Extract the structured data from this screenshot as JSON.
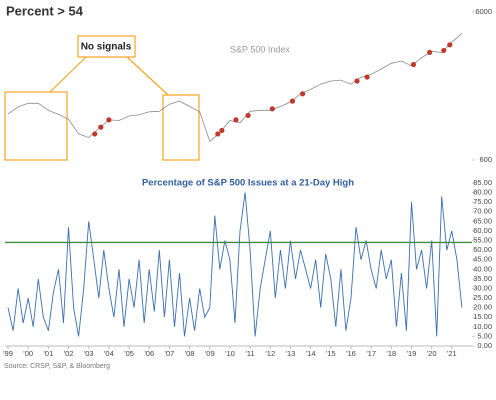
{
  "chart_data": [
    {
      "type": "line",
      "title": "Percent > 54",
      "series_label": "S&P 500 Index",
      "annotation": "No signals",
      "log_scale": true,
      "color": "#8c8c8c",
      "signal_color": "#c0392b",
      "xlim": [
        1998.85,
        2022
      ],
      "ylim": [
        600,
        6000
      ],
      "yticks": [
        600,
        6000
      ],
      "x": [
        1999,
        1999.5,
        2000,
        2000.5,
        2001,
        2001.5,
        2002,
        2002.5,
        2003,
        2003.5,
        2004,
        2004.5,
        2005,
        2005.5,
        2006,
        2006.5,
        2007,
        2007.5,
        2008,
        2008.5,
        2009,
        2009.5,
        2010,
        2010.5,
        2011,
        2011.5,
        2012,
        2012.5,
        2013,
        2013.5,
        2014,
        2014.5,
        2015,
        2015.5,
        2016,
        2016.5,
        2017,
        2017.5,
        2018,
        2018.5,
        2019,
        2019.5,
        2020,
        2020.5,
        2021,
        2021.5
      ],
      "values": [
        1230,
        1370,
        1450,
        1450,
        1300,
        1220,
        1130,
        900,
        850,
        980,
        1120,
        1110,
        1190,
        1210,
        1270,
        1280,
        1430,
        1500,
        1380,
        1270,
        800,
        920,
        1110,
        1070,
        1280,
        1300,
        1300,
        1380,
        1480,
        1680,
        1800,
        1950,
        2050,
        2080,
        1950,
        2170,
        2280,
        2470,
        2700,
        2800,
        2600,
        2950,
        3250,
        3200,
        3750,
        4300
      ],
      "signal_x": [
        2003.3,
        2003.6,
        2004,
        2009.4,
        2009.6,
        2010.3,
        2010.9,
        2012.1,
        2013.1,
        2013.6,
        2016.3,
        2016.8,
        2019.1,
        2019.9,
        2020.6,
        2020.9
      ],
      "signal_values": [
        900,
        1000,
        1120,
        900,
        950,
        1120,
        1200,
        1330,
        1500,
        1680,
        2050,
        2180,
        2650,
        3200,
        3300,
        3600
      ]
    },
    {
      "type": "line",
      "title": "Percentage of S&P 500 Issues at a 21-Day High",
      "source": "Source: CRSP, S&P, & Bloomberg",
      "color": "#3a6fb0",
      "threshold": 54,
      "threshold_color": "#3c8c3c",
      "xlim": [
        1998.85,
        2022
      ],
      "ylim": [
        0,
        85
      ],
      "yticks": [
        {
          "value": 0,
          "label": "0.00"
        },
        {
          "value": 5,
          "label": "5.00"
        },
        {
          "value": 10,
          "label": "10.00"
        },
        {
          "value": 15,
          "label": "15.00"
        },
        {
          "value": 20,
          "label": "20.00"
        },
        {
          "value": 25,
          "label": "25.00"
        },
        {
          "value": 30,
          "label": "30.00"
        },
        {
          "value": 35,
          "label": "35.00"
        },
        {
          "value": 40,
          "label": "40.00"
        },
        {
          "value": 45,
          "label": "45.00"
        },
        {
          "value": 50,
          "label": "50.00"
        },
        {
          "value": 55,
          "label": "55.00"
        },
        {
          "value": 60,
          "label": "60.00"
        },
        {
          "value": 65,
          "label": "65.00"
        },
        {
          "value": 70,
          "label": "70.00"
        },
        {
          "value": 75,
          "label": "75.00"
        },
        {
          "value": 80,
          "label": "80.00"
        },
        {
          "value": 85,
          "label": "85.00"
        }
      ],
      "xticks": [
        {
          "value": 1999,
          "label": "'99"
        },
        {
          "value": 2000,
          "label": "'00"
        },
        {
          "value": 2001,
          "label": "'01"
        },
        {
          "value": 2002,
          "label": "'02"
        },
        {
          "value": 2003,
          "label": "'03"
        },
        {
          "value": 2004,
          "label": "'04"
        },
        {
          "value": 2005,
          "label": "'05"
        },
        {
          "value": 2006,
          "label": "'06"
        },
        {
          "value": 2007,
          "label": "'07"
        },
        {
          "value": 2008,
          "label": "'08"
        },
        {
          "value": 2009,
          "label": "'09"
        },
        {
          "value": 2010,
          "label": "'10"
        },
        {
          "value": 2011,
          "label": "'11"
        },
        {
          "value": 2012,
          "label": "'12"
        },
        {
          "value": 2013,
          "label": "'13"
        },
        {
          "value": 2014,
          "label": "'14"
        },
        {
          "value": 2015,
          "label": "'15"
        },
        {
          "value": 2016,
          "label": "'16"
        },
        {
          "value": 2017,
          "label": "'17"
        },
        {
          "value": 2018,
          "label": "'18"
        },
        {
          "value": 2019,
          "label": "'19"
        },
        {
          "value": 2020,
          "label": "'20"
        },
        {
          "value": 2021,
          "label": "'21"
        }
      ],
      "x": [
        1999,
        1999.25,
        1999.5,
        1999.75,
        2000,
        2000.25,
        2000.5,
        2000.75,
        2001,
        2001.25,
        2001.5,
        2001.75,
        2002,
        2002.25,
        2002.5,
        2002.75,
        2003,
        2003.25,
        2003.5,
        2003.75,
        2004,
        2004.25,
        2004.5,
        2004.75,
        2005,
        2005.25,
        2005.5,
        2005.75,
        2006,
        2006.25,
        2006.5,
        2006.75,
        2007,
        2007.25,
        2007.5,
        2007.75,
        2008,
        2008.25,
        2008.5,
        2008.75,
        2009,
        2009.25,
        2009.5,
        2009.75,
        2010,
        2010.25,
        2010.5,
        2010.75,
        2011,
        2011.25,
        2011.5,
        2011.75,
        2012,
        2012.25,
        2012.5,
        2012.75,
        2013,
        2013.25,
        2013.5,
        2013.75,
        2014,
        2014.25,
        2014.5,
        2014.75,
        2015,
        2015.25,
        2015.5,
        2015.75,
        2016,
        2016.25,
        2016.5,
        2016.75,
        2017,
        2017.25,
        2017.5,
        2017.75,
        2018,
        2018.25,
        2018.5,
        2018.75,
        2019,
        2019.25,
        2019.5,
        2019.75,
        2020,
        2020.25,
        2020.5,
        2020.75,
        2021,
        2021.25,
        2021.5
      ],
      "values": [
        20,
        8,
        30,
        12,
        25,
        10,
        35,
        15,
        8,
        28,
        40,
        12,
        62,
        20,
        5,
        30,
        65,
        45,
        25,
        50,
        30,
        15,
        40,
        10,
        35,
        20,
        45,
        12,
        40,
        18,
        50,
        15,
        45,
        10,
        38,
        5,
        25,
        8,
        30,
        15,
        20,
        68,
        40,
        55,
        45,
        12,
        60,
        80,
        50,
        5,
        30,
        45,
        60,
        25,
        50,
        30,
        55,
        35,
        50,
        40,
        30,
        45,
        20,
        48,
        35,
        10,
        40,
        8,
        25,
        62,
        45,
        55,
        40,
        30,
        50,
        35,
        45,
        10,
        38,
        8,
        75,
        40,
        50,
        30,
        55,
        5,
        78,
        50,
        60,
        45,
        20
      ]
    }
  ]
}
